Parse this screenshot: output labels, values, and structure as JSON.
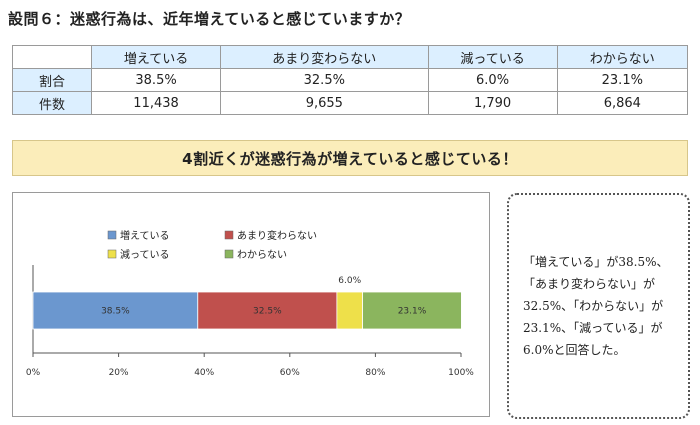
{
  "title": "設問６：迷惑行為は、近年増えていると感じていますか？",
  "table": {
    "headers": [
      "増えている",
      "あまり変わらない",
      "減っている",
      "わからない"
    ],
    "rows": [
      {
        "label": "割合",
        "values": [
          "38.5%",
          "32.5%",
          "6.0%",
          "23.1%"
        ]
      },
      {
        "label": "件数",
        "values": [
          "11,438",
          "9,655",
          "1,790",
          "6,864"
        ]
      }
    ]
  },
  "banner": "4割近くが迷惑行為が増えていると感じている！",
  "chart_data": {
    "type": "bar",
    "orientation": "horizontal-stacked-100",
    "series": [
      {
        "name": "増えている",
        "value": 38.5,
        "label": "38.5%",
        "color": "#6b97cf"
      },
      {
        "name": "あまり変わらない",
        "value": 32.5,
        "label": "32.5%",
        "color": "#c0504d"
      },
      {
        "name": "減っている",
        "value": 6.0,
        "label": "6.0%",
        "color": "#eee04a"
      },
      {
        "name": "わからない",
        "value": 23.1,
        "label": "23.1%",
        "color": "#8bb55e"
      }
    ],
    "xticks": [
      "0%",
      "20%",
      "40%",
      "60%",
      "80%",
      "100%"
    ],
    "xlim": [
      0,
      100
    ],
    "legend_position": "top-left"
  },
  "note": "「増えている」が38.5%、「あまり変わらない」が32.5%、「わからない」が23.1%、「減っている」が6.0%と回答した。"
}
